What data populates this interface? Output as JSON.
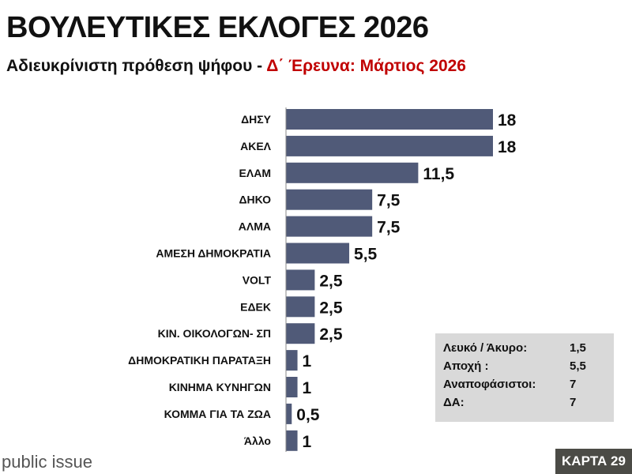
{
  "header": {
    "title": "ΒΟΥΛΕΥΤΙΚΕΣ ΕΚΛΟΓΕΣ 2026",
    "subtitle_black": "Αδιευκρίνιστη πρόθεση ψήφου - ",
    "subtitle_red": "Δ΄ Έρευνα:  Μάρτιος 2026"
  },
  "chart_data": {
    "type": "bar",
    "orientation": "horizontal",
    "title": "ΒΟΥΛΕΥΤΙΚΕΣ ΕΚΛΟΓΕΣ 2026",
    "categories": [
      "ΔΗΣΥ",
      "ΑΚΕΛ",
      "ΕΛΑΜ",
      "ΔΗΚΟ",
      "ΑΛΜΑ",
      "ΑΜΕΣΗ ΔΗΜΟΚΡΑΤΙΑ",
      "VOLT",
      "ΕΔΕΚ",
      "ΚΙΝ. ΟΙΚΟΛΟΓΩΝ- ΣΠ",
      "ΔΗΜΟΚΡΑΤΙΚΗ ΠΑΡΑΤΑΞΗ",
      "ΚΙΝΗΜΑ ΚΥΝΗΓΩΝ",
      "ΚΟΜΜΑ ΓΙΑ ΤΑ ΖΩΑ",
      "Άλλο"
    ],
    "values": [
      18,
      18,
      11.5,
      7.5,
      7.5,
      5.5,
      2.5,
      2.5,
      2.5,
      1,
      1,
      0.5,
      1
    ],
    "value_labels": [
      "18",
      "18",
      "11,5",
      "7,5",
      "7,5",
      "5,5",
      "2,5",
      "2,5",
      "2,5",
      "1",
      "1",
      "0,5",
      "1"
    ],
    "xlim": [
      0,
      18
    ],
    "bar_color": "#505a78",
    "grid": false
  },
  "side_box": {
    "rows": [
      {
        "label": "Λευκό / Άκυρο:",
        "value": "1,5"
      },
      {
        "label": "Αποχή :",
        "value": "5,5"
      },
      {
        "label": "Αναποφάσιστοι:",
        "value": "7"
      },
      {
        "label": "ΔΑ:",
        "value": "7"
      }
    ]
  },
  "footer": {
    "brand": "public issue",
    "card": "ΚΑΡΤΑ 29"
  }
}
